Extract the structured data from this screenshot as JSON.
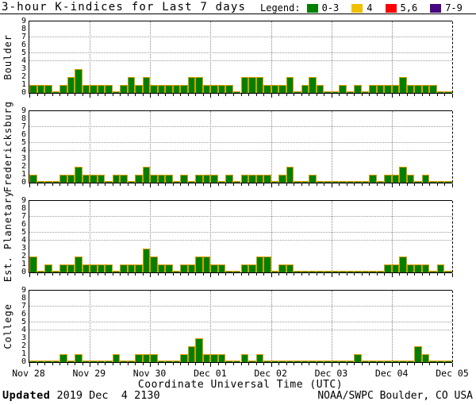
{
  "title": "3-hour K-indices for Last 7 days",
  "legend": {
    "label": "Legend:",
    "items": [
      {
        "label": "0-3",
        "color": "#008000"
      },
      {
        "label": "4",
        "color": "#f0c000"
      },
      {
        "label": "5,6",
        "color": "#ff0000"
      },
      {
        "label": "7-9",
        "color": "#46087e"
      }
    ]
  },
  "footer": {
    "updated_label": "Updated",
    "updated_value": " 2019 Dec  4 2130",
    "source": "NOAA/SWPC Boulder, CO USA"
  },
  "colors": {
    "bar_fill": "#008000",
    "bar_outline": "#dd9c00",
    "grid_gray": "#8a8a8a",
    "axis_black": "#000000"
  },
  "chart_data": {
    "type": "bar",
    "title": "3-hour K-indices for Last 7 days",
    "xlabel": "Coordinate Universal Time (UTC)",
    "x_tick_labels": [
      "Nov 28",
      "Nov 29",
      "Nov 30",
      "Dec 01",
      "Dec 02",
      "Dec 03",
      "Dec 04",
      "Dec 05"
    ],
    "bars_per_day": 8,
    "interval_hours": 3,
    "days": 7,
    "ylim": [
      0,
      9
    ],
    "y_tick_labels": [
      0,
      1,
      2,
      3,
      4,
      5,
      6,
      7,
      8,
      9
    ],
    "hgrid_levels": [
      4,
      5,
      7
    ],
    "legend_position": "top-right",
    "grid": true,
    "series": [
      {
        "name": "Boulder",
        "values": [
          1,
          1,
          1,
          0,
          1,
          2,
          3,
          1,
          1,
          1,
          1,
          0,
          1,
          2,
          1,
          2,
          1,
          1,
          1,
          1,
          1,
          2,
          2,
          1,
          1,
          1,
          1,
          0,
          2,
          2,
          2,
          1,
          1,
          1,
          2,
          0,
          1,
          2,
          1,
          0,
          0,
          1,
          0,
          1,
          0,
          1,
          1,
          1,
          1,
          2,
          1,
          1,
          1,
          1,
          0,
          0
        ]
      },
      {
        "name": "Fredericksburg",
        "values": [
          1,
          0,
          0,
          0,
          1,
          1,
          2,
          1,
          1,
          1,
          0,
          1,
          1,
          0,
          1,
          2,
          1,
          1,
          1,
          0,
          1,
          0,
          1,
          1,
          1,
          0,
          1,
          0,
          1,
          1,
          1,
          1,
          0,
          1,
          2,
          0,
          0,
          1,
          0,
          0,
          0,
          0,
          0,
          0,
          0,
          1,
          0,
          1,
          1,
          2,
          1,
          0,
          1,
          0,
          0,
          0
        ]
      },
      {
        "name": "Est. Planetary",
        "values": [
          2,
          0,
          1,
          0,
          1,
          1,
          2,
          1,
          1,
          1,
          1,
          0,
          1,
          1,
          1,
          3,
          2,
          1,
          1,
          0,
          1,
          1,
          2,
          2,
          1,
          1,
          0,
          0,
          1,
          1,
          2,
          2,
          0,
          1,
          1,
          0,
          0,
          0,
          0,
          0,
          0,
          0,
          0,
          0,
          0,
          0,
          0,
          1,
          1,
          2,
          1,
          1,
          1,
          0,
          1,
          0
        ]
      },
      {
        "name": "College",
        "values": [
          0,
          0,
          0,
          0,
          1,
          0,
          1,
          0,
          0,
          0,
          0,
          1,
          0,
          0,
          1,
          1,
          1,
          0,
          0,
          0,
          1,
          2,
          3,
          1,
          1,
          1,
          0,
          0,
          1,
          0,
          1,
          0,
          0,
          0,
          0,
          0,
          0,
          0,
          0,
          0,
          0,
          0,
          0,
          1,
          0,
          0,
          0,
          0,
          0,
          0,
          0,
          2,
          1,
          0,
          0,
          0
        ]
      }
    ]
  }
}
